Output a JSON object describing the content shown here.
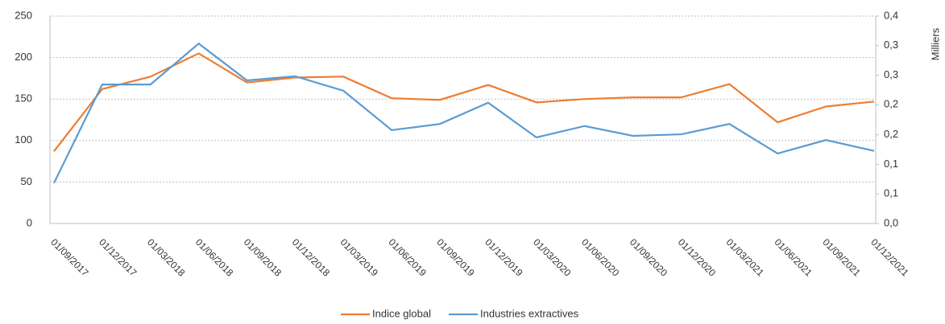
{
  "chart_data": {
    "type": "line",
    "categories": [
      "01/09/2017",
      "01/12/2017",
      "01/03/2018",
      "01/06/2018",
      "01/09/2018",
      "01/12/2018",
      "01/03/2019",
      "01/06/2019",
      "01/09/2019",
      "01/12/2019",
      "01/03/2020",
      "01/06/2020",
      "01/09/2020",
      "01/12/2020",
      "01/03/2021",
      "01/06/2021",
      "01/09/2021",
      "01/12/2021"
    ],
    "series": [
      {
        "name": "Indice global",
        "color": "#ed7d31",
        "values": [
          87,
          162,
          177,
          205,
          170,
          176,
          177,
          151,
          149,
          167,
          146,
          150,
          152,
          152,
          168,
          122,
          141,
          147
        ]
      },
      {
        "name": "Industries extractives",
        "color": "#5b9bd5",
        "axis": "y2",
        "values": [
          0.078,
          0.268,
          0.268,
          0.347,
          0.276,
          0.284,
          0.256,
          0.18,
          0.192,
          0.233,
          0.166,
          0.188,
          0.169,
          0.172,
          0.192,
          0.135,
          0.161,
          0.14
        ]
      }
    ],
    "ylim": [
      0,
      250
    ],
    "yticks": [
      0,
      50,
      100,
      150,
      200,
      250
    ],
    "y2lim": [
      0,
      0.4
    ],
    "y2ticks": [
      {
        "value": 0,
        "label": "0,0"
      },
      {
        "value": 0.057,
        "label": "0,1"
      },
      {
        "value": 0.114,
        "label": "0,1"
      },
      {
        "value": 0.171,
        "label": "0,2"
      },
      {
        "value": 0.229,
        "label": "0,2"
      },
      {
        "value": 0.286,
        "label": "0,3"
      },
      {
        "value": 0.343,
        "label": "0,3"
      },
      {
        "value": 0.4,
        "label": "0,4"
      }
    ],
    "y2label": "Milliers",
    "grid": true,
    "legend": "bottom"
  }
}
